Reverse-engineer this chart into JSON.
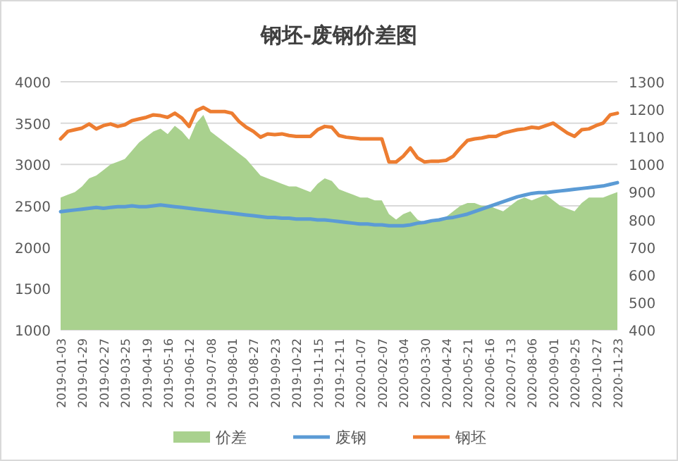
{
  "chart_data": {
    "type": "line",
    "title": "钢坯-废钢价差图",
    "categories": [
      "2019-01-03",
      null,
      null,
      "2019-01-29",
      null,
      null,
      "2019-02-27",
      null,
      null,
      "2019-03-25",
      null,
      null,
      "2019-04-19",
      null,
      null,
      "2019-05-16",
      null,
      null,
      "2019-06-12",
      null,
      null,
      "2019-07-08",
      null,
      null,
      "2019-08-01",
      null,
      null,
      "2019-08-27",
      null,
      null,
      "2019-09-23",
      null,
      null,
      "2019-10-22",
      null,
      null,
      "2019-11-15",
      null,
      null,
      "2019-12-11",
      null,
      null,
      "2020-01-07",
      null,
      null,
      "2020-02-07",
      null,
      null,
      "2020-03-04",
      null,
      null,
      "2020-03-30",
      null,
      null,
      "2020-04-24",
      null,
      null,
      "2020-05-21",
      null,
      null,
      "2020-06-16",
      null,
      null,
      "2020-07-13",
      null,
      null,
      "2020-08-06",
      null,
      null,
      "2020-09-01",
      null,
      null,
      "2020-09-25",
      null,
      null,
      "2020-10-27",
      null,
      null,
      "2020-11-23"
    ],
    "series": [
      {
        "name": "价差",
        "type": "area",
        "axis": "y2",
        "color": "#a9d18e",
        "values": [
          880,
          890,
          900,
          920,
          950,
          960,
          980,
          1000,
          1010,
          1020,
          1050,
          1080,
          1100,
          1120,
          1130,
          1110,
          1140,
          1120,
          1090,
          1150,
          1180,
          1120,
          1100,
          1080,
          1060,
          1040,
          1020,
          990,
          960,
          950,
          940,
          930,
          920,
          920,
          910,
          900,
          930,
          950,
          940,
          910,
          900,
          890,
          880,
          880,
          870,
          870,
          820,
          800,
          820,
          830,
          800,
          790,
          800,
          800,
          810,
          830,
          850,
          860,
          860,
          850,
          850,
          840,
          830,
          850,
          870,
          880,
          870,
          880,
          890,
          870,
          850,
          840,
          830,
          860,
          880,
          880,
          880,
          890,
          900
        ]
      },
      {
        "name": "废钢",
        "color": "#5b9bd5",
        "values": [
          2430,
          2440,
          2450,
          2460,
          2470,
          2480,
          2470,
          2480,
          2490,
          2490,
          2500,
          2490,
          2490,
          2500,
          2510,
          2500,
          2490,
          2480,
          2470,
          2460,
          2450,
          2440,
          2430,
          2420,
          2410,
          2400,
          2390,
          2380,
          2370,
          2360,
          2360,
          2350,
          2350,
          2340,
          2340,
          2340,
          2330,
          2330,
          2320,
          2310,
          2300,
          2290,
          2280,
          2280,
          2270,
          2270,
          2260,
          2260,
          2260,
          2270,
          2290,
          2300,
          2320,
          2330,
          2350,
          2360,
          2380,
          2400,
          2430,
          2460,
          2490,
          2520,
          2550,
          2580,
          2610,
          2630,
          2650,
          2660,
          2660,
          2670,
          2680,
          2690,
          2700,
          2710,
          2720,
          2730,
          2740,
          2760,
          2780
        ]
      },
      {
        "name": "钢坯",
        "color": "#ed7d31",
        "values": [
          3310,
          3400,
          3420,
          3440,
          3490,
          3430,
          3470,
          3490,
          3460,
          3480,
          3530,
          3550,
          3570,
          3600,
          3590,
          3570,
          3620,
          3560,
          3460,
          3650,
          3690,
          3640,
          3640,
          3640,
          3620,
          3520,
          3450,
          3400,
          3330,
          3370,
          3360,
          3370,
          3350,
          3340,
          3340,
          3340,
          3420,
          3460,
          3450,
          3350,
          3330,
          3320,
          3310,
          3310,
          3310,
          3310,
          3030,
          3030,
          3100,
          3200,
          3080,
          3030,
          3040,
          3040,
          3050,
          3100,
          3200,
          3290,
          3310,
          3320,
          3340,
          3340,
          3380,
          3400,
          3420,
          3430,
          3450,
          3440,
          3470,
          3500,
          3440,
          3380,
          3340,
          3420,
          3430,
          3470,
          3500,
          3600,
          3620
        ]
      }
    ],
    "ylim": [
      1000,
      4000
    ],
    "yticks": [
      1000,
      1500,
      2000,
      2500,
      3000,
      3500,
      4000
    ],
    "y2lim": [
      400,
      1300
    ],
    "y2ticks": [
      400,
      500,
      600,
      700,
      800,
      900,
      1000,
      1100,
      1200,
      1300
    ],
    "grid": "y",
    "legend": "bottom"
  }
}
